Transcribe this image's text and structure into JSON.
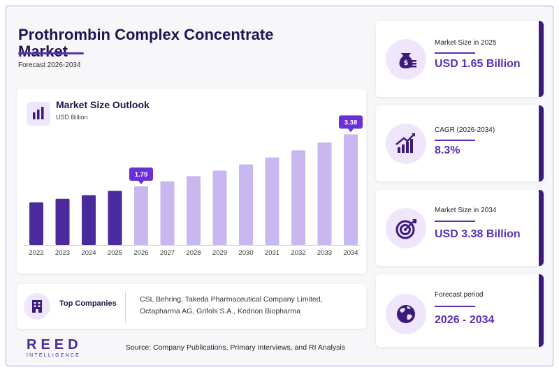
{
  "header": {
    "title_line1": "Prothrombin Complex Concentrate",
    "title_line2": "Market",
    "subtitle": "Forecast 2026-2034"
  },
  "colors": {
    "historic_bar": "#4b2a9e",
    "forecast_bar": "#c9b8f0",
    "accent": "#5a2fb5",
    "dark": "#1e1650",
    "callout": "#6a2fd6"
  },
  "chart_data": {
    "type": "bar",
    "title": "Market Size Outlook",
    "ylabel": "USD Billion",
    "categories": [
      "2022",
      "2023",
      "2024",
      "2025",
      "2026",
      "2027",
      "2028",
      "2029",
      "2030",
      "2031",
      "2032",
      "2033",
      "2034"
    ],
    "values": [
      1.3,
      1.41,
      1.52,
      1.65,
      1.79,
      1.94,
      2.1,
      2.27,
      2.46,
      2.67,
      2.89,
      3.13,
      3.38
    ],
    "historic_years": [
      "2022",
      "2023",
      "2024",
      "2025"
    ],
    "labeled_points": [
      {
        "category": "2026",
        "label": "1.79"
      },
      {
        "category": "2034",
        "label": "3.38"
      }
    ],
    "ylim": [
      0,
      3.6
    ],
    "grid": false
  },
  "companies": {
    "label": "Top Companies",
    "text": "CSL Behring, Takeda Pharmaceutical Company Limited, Octapharma AG, Grifols S.A., Kedrion Biopharma",
    "icon": "building-icon"
  },
  "kpis": [
    {
      "label": "Market Size in 2025",
      "value": "USD 1.65 Billion",
      "icon": "money-bag-icon"
    },
    {
      "label": "CAGR (2026-2034)",
      "value": "8.3%",
      "icon": "growth-chart-icon"
    },
    {
      "label": "Market Size in 2034",
      "value": "USD 3.38 Billion",
      "icon": "target-icon"
    },
    {
      "label": "Forecast period",
      "value": "2026 - 2034",
      "icon": "globe-icon"
    }
  ],
  "footer": {
    "logo_word": "REED",
    "logo_sub": "INTELLIGENCE",
    "source": "Source: Company Publications, Primary Interviews, and RI Analysis"
  }
}
